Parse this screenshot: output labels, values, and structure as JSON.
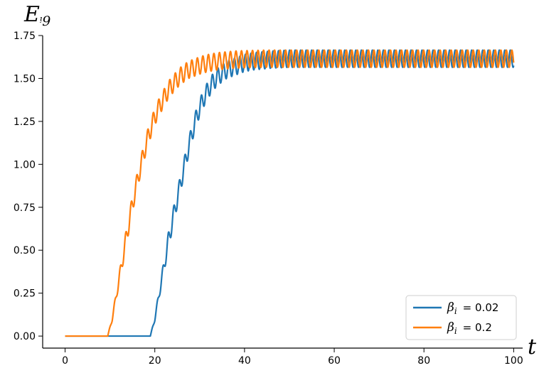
{
  "chart_data": {
    "type": "line",
    "title": "",
    "xlabel": "t",
    "ylabel_main": "E",
    "ylabel_sub": "ᵎ9",
    "xlim": [
      -5,
      102
    ],
    "ylim": [
      -0.07,
      1.75
    ],
    "xticks": [
      0,
      20,
      40,
      60,
      80,
      100
    ],
    "xtick_labels": [
      "0",
      "20",
      "40",
      "60",
      "80",
      "100"
    ],
    "yticks": [
      0.0,
      0.25,
      0.5,
      0.75,
      1.0,
      1.25,
      1.5,
      1.75
    ],
    "ytick_labels": [
      "0.00",
      "0.25",
      "0.50",
      "0.75",
      "1.00",
      "1.25",
      "1.50",
      "1.75"
    ],
    "grid": false,
    "legend_position": "bottom-right",
    "series": [
      {
        "name_symbol": "β",
        "name_sub": "i",
        "name_value": "= 0.02",
        "color": "#1f77b4",
        "x": [
          0,
          19,
          20,
          21,
          22,
          23,
          24,
          25,
          26,
          27,
          28,
          29,
          30,
          31,
          32,
          33,
          34,
          35,
          36,
          37,
          38,
          39,
          40,
          42,
          44,
          46,
          50,
          60,
          70,
          80,
          90,
          100
        ],
        "y": [
          0.0,
          0.0,
          0.1,
          0.25,
          0.4,
          0.55,
          0.68,
          0.8,
          0.92,
          1.04,
          1.15,
          1.25,
          1.33,
          1.39,
          1.44,
          1.48,
          1.51,
          1.53,
          1.55,
          1.56,
          1.57,
          1.58,
          1.59,
          1.6,
          1.605,
          1.61,
          1.615,
          1.615,
          1.615,
          1.615,
          1.615,
          1.615
        ]
      },
      {
        "name_symbol": "β",
        "name_sub": "i",
        "name_value": "= 0.2",
        "color": "#ff7f0e",
        "x": [
          0,
          9.5,
          10.5,
          11.5,
          12.5,
          13.5,
          14.5,
          15.5,
          16.5,
          17.5,
          18.5,
          19.5,
          20.5,
          21.5,
          22.5,
          23.5,
          24.5,
          25.5,
          26.5,
          27.5,
          28.5,
          29.5,
          30.5,
          32,
          34,
          36,
          38,
          40,
          45,
          50,
          60,
          70,
          80,
          90,
          100
        ],
        "y": [
          0.0,
          0.0,
          0.1,
          0.25,
          0.4,
          0.55,
          0.7,
          0.83,
          0.95,
          1.06,
          1.16,
          1.24,
          1.31,
          1.36,
          1.41,
          1.45,
          1.48,
          1.51,
          1.53,
          1.55,
          1.56,
          1.57,
          1.58,
          1.59,
          1.6,
          1.605,
          1.61,
          1.612,
          1.615,
          1.615,
          1.615,
          1.615,
          1.615,
          1.615,
          1.615
        ]
      }
    ]
  }
}
